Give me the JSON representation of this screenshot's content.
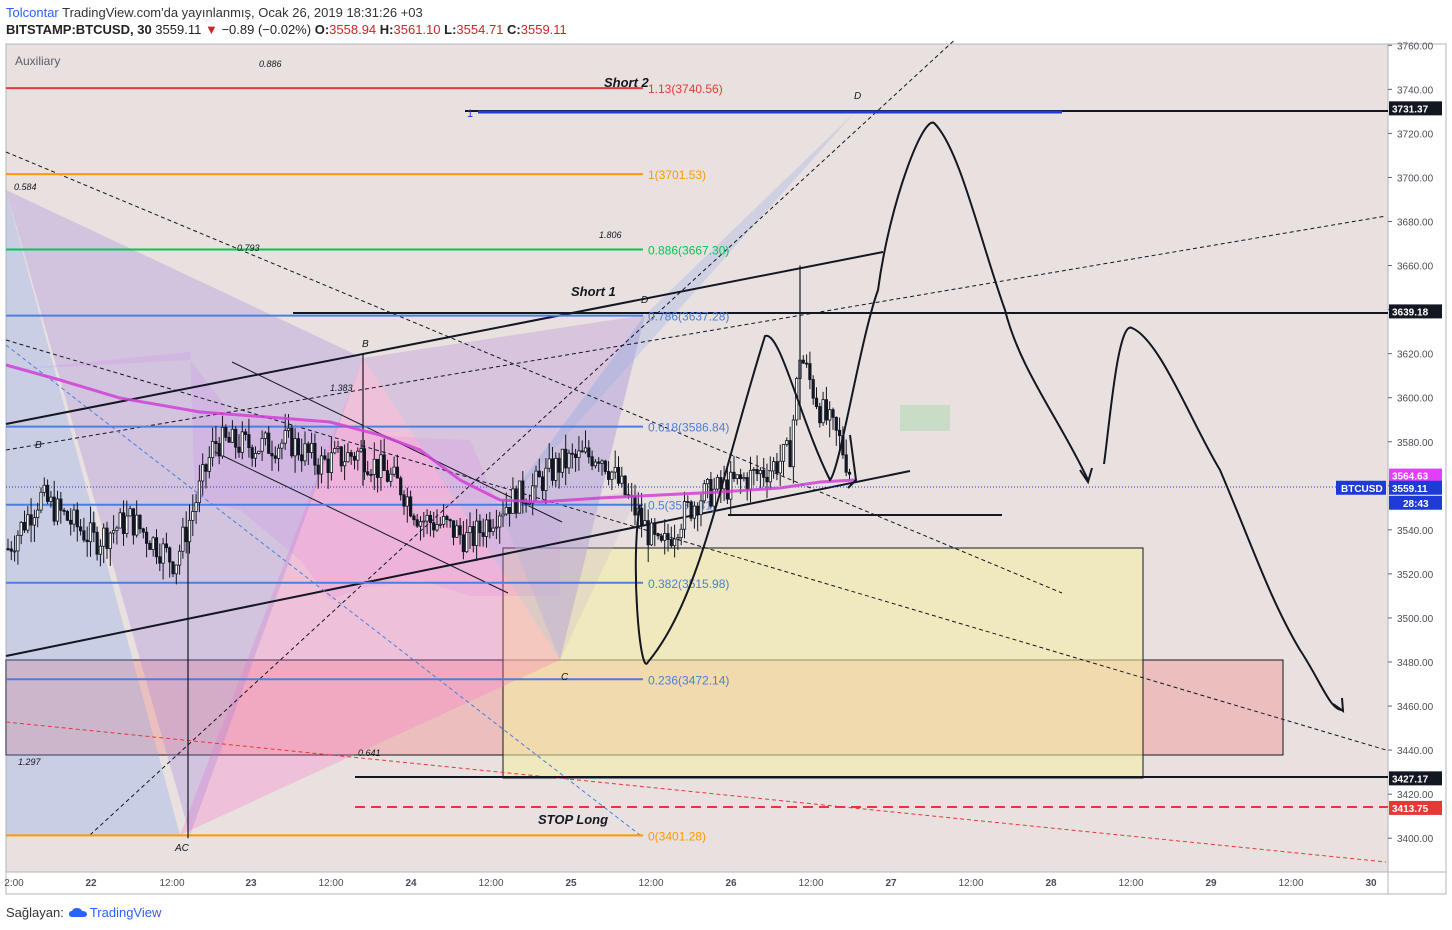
{
  "header": {
    "author": "Tolcontar",
    "published_text": "TradingView.com'da yayınlanmış, Ocak 26, 2019 18:31:26 +03",
    "symbol": "BITSTAMP:BTCUSD",
    "interval": ", 30",
    "last": "3559.11",
    "change_arrow": "▼",
    "change": "−0.89 (−0.02%)",
    "o_label": "O:",
    "o_value": "3558.94",
    "h_label": "H:",
    "h_value": "3561.10",
    "l_label": "L:",
    "l_value": "3554.71",
    "c_label": "C:",
    "c_value": "3559.11"
  },
  "footer": {
    "label": "Sağlayan:",
    "brand": "TradingView"
  },
  "chart_data": {
    "type": "candlestick",
    "pane_label": "Auxiliary",
    "y_axis": {
      "ylim": [
        3390,
        3762
      ],
      "ticks": [
        3400,
        3420,
        3440,
        3460,
        3480,
        3500,
        3520,
        3540,
        3560,
        3580,
        3600,
        3620,
        3640,
        3660,
        3680,
        3700,
        3720,
        3740,
        3760
      ],
      "tick_labels": [
        "3400.00",
        "3420.00",
        "3440.00",
        "3460.00",
        "3480.00",
        "3500.00",
        "3520.00",
        "3540.00",
        "3560.00",
        "3580.00",
        "3600.00",
        "3620.00",
        "3640.00",
        "3660.00",
        "3680.00",
        "3700.00",
        "3720.00",
        "3740.00",
        "3760.00"
      ]
    },
    "x_axis": {
      "ticks": [
        "2:00",
        "22",
        "12:00",
        "23",
        "12:00",
        "24",
        "12:00",
        "25",
        "12:00",
        "26",
        "12:00",
        "27",
        "12:00",
        "28",
        "12:00",
        "29",
        "12:00",
        "30"
      ],
      "bold": [
        "22",
        "23",
        "24",
        "25",
        "26",
        "27",
        "28",
        "29",
        "30"
      ]
    },
    "fib_levels": [
      {
        "label": "1.13(3740.56)",
        "value": 3740.56,
        "color": "#e53935"
      },
      {
        "label": "1(3701.53)",
        "value": 3701.53,
        "color": "#ff9800"
      },
      {
        "label": "0.886(3667.30)",
        "value": 3667.3,
        "color": "#00c853"
      },
      {
        "label": "0.786(3637.28)",
        "value": 3637.28,
        "color": "#4a7fdf"
      },
      {
        "label": "0.618(3586.84)",
        "value": 3586.84,
        "color": "#4a7fdf"
      },
      {
        "label": "0.5(3551.41)",
        "value": 3551.41,
        "color": "#4a7fdf"
      },
      {
        "label": "0.382(3515.98)",
        "value": 3515.98,
        "color": "#4a7fdf"
      },
      {
        "label": "0.236(3472.14)",
        "value": 3472.14,
        "color": "#4a7fdf"
      },
      {
        "label": "0(3401.28)",
        "value": 3401.28,
        "color": "#ff9800"
      }
    ],
    "price_labels": [
      {
        "text": "3731.37",
        "value": 3731.37,
        "bg": "#131722",
        "fg": "#ffffff"
      },
      {
        "text": "3639.18",
        "value": 3639.18,
        "bg": "#131722",
        "fg": "#ffffff"
      },
      {
        "text": "3564.63",
        "value": 3564.63,
        "bg": "#e040fb",
        "fg": "#ffffff"
      },
      {
        "text": "3559.11",
        "value": 3559.11,
        "bg": "#1e3bd6",
        "fg": "#ffffff"
      },
      {
        "text": "3427.17",
        "value": 3427.17,
        "bg": "#131722",
        "fg": "#ffffff"
      },
      {
        "text": "3413.75",
        "value": 3413.75,
        "bg": "#e53935",
        "fg": "#ffffff"
      }
    ],
    "symbol_tag": "BTCUSD",
    "countdown": "28:43",
    "annotations": {
      "short2": "Short 2",
      "short1": "Short 1",
      "stop_long": "STOP Long",
      "ratios": [
        "0.886",
        "0.584",
        "0.793",
        "1.806",
        "1.383",
        "1.297",
        "0.641"
      ],
      "points": [
        "D",
        "D",
        "B",
        "B",
        "C",
        "AC"
      ],
      "one": "1"
    },
    "ohlc": {
      "open": 3558.94,
      "high": 3561.1,
      "low": 3554.71,
      "close": 3559.11
    },
    "colors": {
      "up": "#4caf50",
      "down": "#ef5350",
      "candles": "#131722",
      "ma": "#d140d6",
      "background": "#e8e1df"
    }
  }
}
